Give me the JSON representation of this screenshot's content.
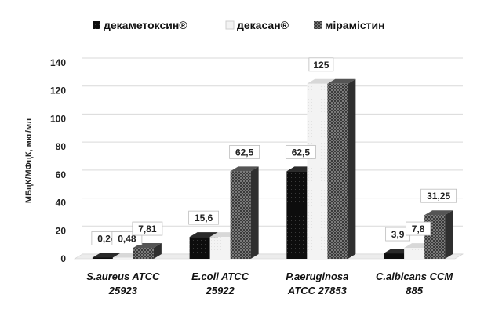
{
  "chart_data": {
    "type": "bar",
    "title": "",
    "ylabel": "МБцК/МФцК, мкг/мл",
    "xlabel": "",
    "ylim": [
      0,
      140
    ],
    "yticks": [
      0,
      20,
      40,
      60,
      80,
      100,
      120,
      140
    ],
    "grid": true,
    "legend_position": "top",
    "categories": [
      [
        "S.aureus ATCC",
        "25923"
      ],
      [
        "E.coli ATCC",
        "25922"
      ],
      [
        "P.aeruginosa",
        "ATCC 27853"
      ],
      [
        "C.albicans CCM",
        "885"
      ]
    ],
    "series": [
      {
        "name": "декаметоксин®",
        "color": "#111111",
        "pattern": "solid-dark",
        "values": [
          0.24,
          15.6,
          62.5,
          3.9
        ],
        "labels": [
          "0,24",
          "15,6",
          "62,5",
          "3,9"
        ]
      },
      {
        "name": "декасан®",
        "color": "#f0f0f0",
        "pattern": "light",
        "values": [
          0.48,
          15.6,
          125,
          7.8
        ],
        "labels": [
          "0,48",
          "",
          "125",
          "7,8"
        ]
      },
      {
        "name": "мірамістин",
        "color": "#4a4a4a",
        "pattern": "checker",
        "values": [
          7.81,
          62.5,
          125,
          31.25
        ],
        "labels": [
          "7,81",
          "62,5",
          "",
          "31,25"
        ]
      }
    ]
  }
}
